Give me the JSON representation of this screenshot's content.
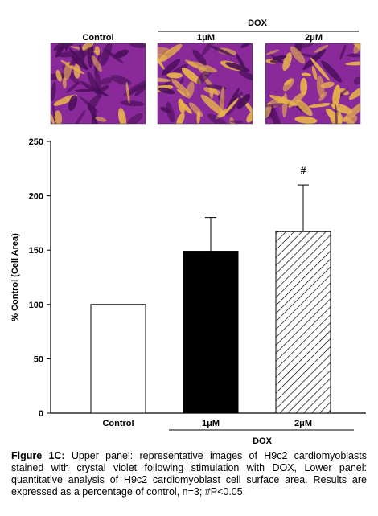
{
  "micrographs": {
    "group_label": "DOX",
    "panels": [
      {
        "label": "Control"
      },
      {
        "label": "1μM"
      },
      {
        "label": "2μM"
      }
    ]
  },
  "chart_data": {
    "type": "bar",
    "categories": [
      "Control",
      "1μM",
      "2μM"
    ],
    "values": [
      100,
      149,
      167
    ],
    "errors": [
      0,
      31,
      43
    ],
    "fills": [
      "white",
      "black",
      "hatched"
    ],
    "annotations": [
      "",
      "",
      "#"
    ],
    "ylabel": "% Control (Cell Area)",
    "xlabel": "DOX",
    "ylim": [
      0,
      250
    ],
    "yticks": [
      0,
      50,
      100,
      150,
      200,
      250
    ],
    "grid": false
  },
  "caption": {
    "label": "Figure 1C:",
    "text": " Upper panel: representative images of H9c2 cardiomyoblasts stained with crystal violet following stimulation with DOX, Lower panel: quantitative analysis of H9c2 cardiomyoblast cell surface area. Results are expressed as a percentage of control, n=3; #P<0.05."
  },
  "colors": {
    "stain_base": "#8a2a9a",
    "stain_light": "#e8b44a",
    "stain_dark": "#4a0f5a"
  }
}
